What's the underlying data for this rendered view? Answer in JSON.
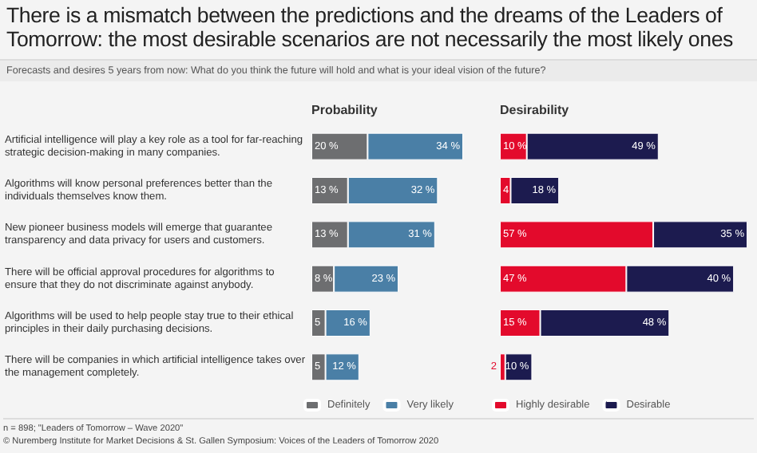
{
  "chart_data": [
    {
      "type": "other",
      "title": "There is a mismatch between the predictions and the dreams of the Leaders of Tomorrow: the most desirable scenarios are not necessarily the most likely ones",
      "subtitle": "Forecasts and desires 5 years from now: What do you think the future will hold and what is your ideal vision of the future?",
      "annotations": [
        "n = 898; \"Leaders of Tomorrow – Wave 2020\"",
        "© Nuremberg Institute for Market Decisions & St. Gallen Symposium: Voices of the Leaders of Tomorrow 2020"
      ]
    },
    {
      "type": "bar",
      "title": "Probability",
      "orientation": "horizontal",
      "stacked": true,
      "legend": "bottom",
      "tick_labels": "y",
      "categories": [
        "Artificial intelligence will play a key role as a tool for far-reaching strategic decision-making in many companies.",
        "Algorithms will know personal preferences better than the individuals themselves know them.",
        "New pioneer business models will emerge that guarantee transparency and data privacy for users and customers.",
        "There will be official approval procedures for algorithms to ensure that they do not discriminate against anybody.",
        "Algorithms will be used to help people stay true to their ethical principles in their daily purchasing decisions.",
        "There will be companies in which artificial intelligence takes over the management completely."
      ],
      "series": [
        {
          "name": "Definitely",
          "color": "#6d6e70",
          "values": [
            20,
            13,
            13,
            8,
            5,
            5
          ],
          "value_labels": [
            "20 %",
            "13 %",
            "13 %",
            "8 %",
            "5",
            "5"
          ]
        },
        {
          "name": "Very likely",
          "color": "#4a7fa6",
          "values": [
            34,
            32,
            31,
            23,
            16,
            12
          ],
          "value_labels": [
            "34 %",
            "32 %",
            "31 %",
            "23 %",
            "16 %",
            "12 %"
          ]
        }
      ]
    },
    {
      "type": "bar",
      "title": "Desirability",
      "orientation": "horizontal",
      "stacked": true,
      "legend": "bottom",
      "tick_labels": false,
      "categories": [
        null,
        null,
        null,
        null,
        null,
        null
      ],
      "series": [
        {
          "name": "Highly desirable",
          "color": "#e30a2c",
          "values": [
            10,
            4,
            57,
            47,
            15,
            2
          ],
          "value_labels": [
            "10 %",
            "4",
            "57 %",
            "47 %",
            "15 %",
            "2"
          ]
        },
        {
          "name": "Desirable",
          "color": "#1c1b4f",
          "values": [
            49,
            18,
            35,
            40,
            48,
            10
          ],
          "value_labels": [
            "49 %",
            "18 %",
            "35 %",
            "40 %",
            "48 %",
            "10 %"
          ]
        }
      ]
    }
  ]
}
